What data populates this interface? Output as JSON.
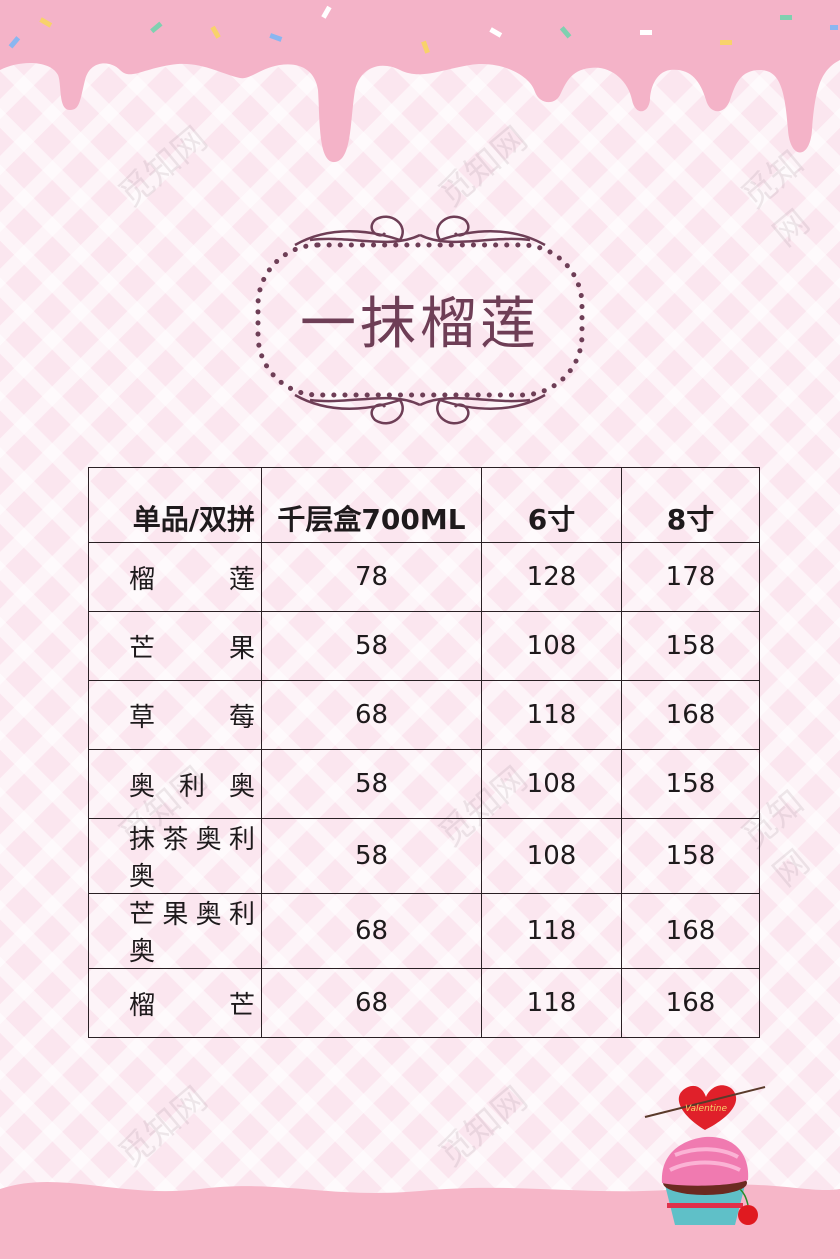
{
  "title": "一抹榴莲",
  "watermark": "觅知网",
  "table": {
    "headers": [
      "单品/双拼",
      "千层盒700ML",
      "6寸",
      "8寸"
    ],
    "rows": [
      [
        "榴莲",
        "78",
        "128",
        "178"
      ],
      [
        "芒果",
        "58",
        "108",
        "158"
      ],
      [
        "草莓",
        "68",
        "118",
        "168"
      ],
      [
        "奥利奥",
        "58",
        "108",
        "158"
      ],
      [
        "抹茶奥利奥",
        "58",
        "108",
        "158"
      ],
      [
        "芒果奥利奥",
        "68",
        "118",
        "168"
      ],
      [
        "榴芒",
        "68",
        "118",
        "168"
      ]
    ]
  },
  "decoration": {
    "cupcake_heart_text": "Valentine"
  },
  "colors": {
    "title": "#6e3e56",
    "drip": "#f4b3c8",
    "background": "#fbe6ef",
    "border": "#2a2024"
  }
}
